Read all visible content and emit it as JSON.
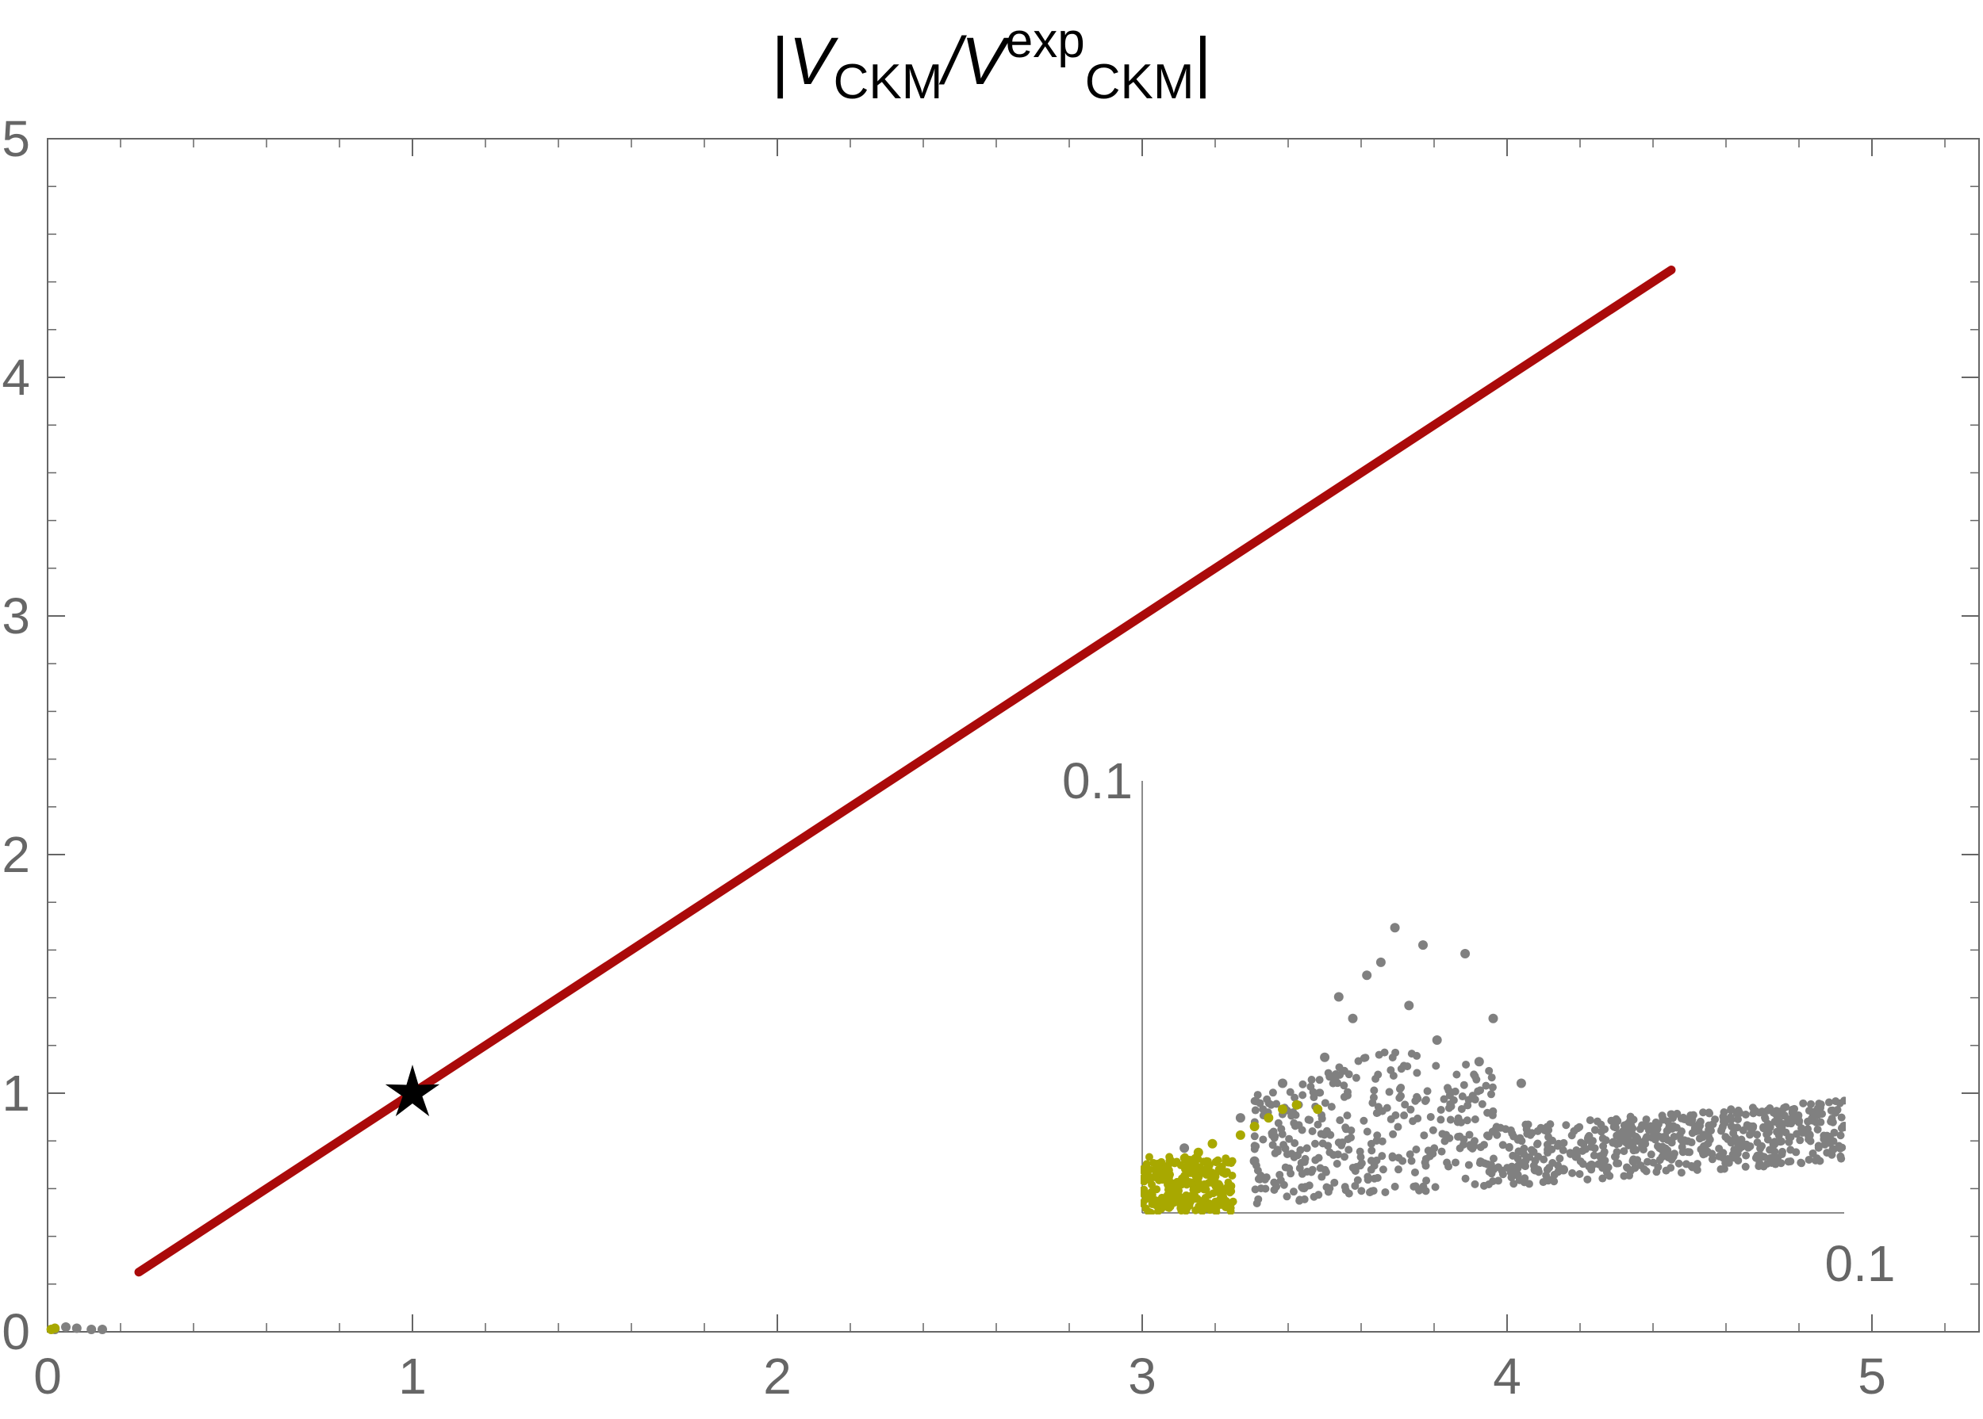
{
  "colors": {
    "axis": "#666666",
    "line": "#aa0a0a",
    "gray_points": "#808080",
    "yellow_points": "#a8a800",
    "star": "#000000"
  },
  "chart_data": [
    {
      "type": "scatter",
      "title_parts": {
        "bar_open": "|",
        "v1": "V",
        "sub1": "CKM",
        "slash": "/",
        "v2": "V",
        "sup": "exp",
        "sub2": "CKM",
        "bar_close": "|"
      },
      "xlabel": "",
      "ylabel": "",
      "xlim": [
        0,
        5.3
      ],
      "ylim": [
        0,
        5
      ],
      "x_ticks": [
        "0",
        "1",
        "2",
        "3",
        "4",
        "5"
      ],
      "y_ticks": [
        "0",
        "1",
        "2",
        "3",
        "4",
        "5"
      ],
      "grid": false,
      "series": [
        {
          "kind": "line",
          "color": "#aa0a0a",
          "x": [
            0.25,
            4.45
          ],
          "y": [
            0.25,
            4.45
          ]
        },
        {
          "kind": "marker",
          "marker": "star",
          "color": "#000000",
          "x": [
            1.0
          ],
          "y": [
            1.0
          ]
        },
        {
          "kind": "points",
          "color": "#808080",
          "x": [
            0.02,
            0.05,
            0.08,
            0.12,
            0.15
          ],
          "y": [
            0.01,
            0.02,
            0.015,
            0.01,
            0.01
          ]
        },
        {
          "kind": "points",
          "color": "#a8a800",
          "x": [
            0.01,
            0.02
          ],
          "y": [
            0.01,
            0.015
          ]
        }
      ]
    },
    {
      "type": "scatter",
      "inset": true,
      "x_tick_max": "0.1",
      "y_tick_max": "0.1",
      "xlim": [
        0,
        0.1
      ],
      "ylim": [
        0,
        0.1
      ],
      "series": [
        {
          "kind": "points",
          "color": "#808080",
          "x": [
            0.006,
            0.014,
            0.02,
            0.026,
            0.03,
            0.034,
            0.036,
            0.04,
            0.046,
            0.05,
            0.054,
            0.06,
            0.07,
            0.08,
            0.09,
            0.1,
            0.016,
            0.022,
            0.028,
            0.032,
            0.038,
            0.042,
            0.048,
            0.056,
            0.064,
            0.075,
            0.085,
            0.095
          ],
          "y": [
            0.015,
            0.022,
            0.03,
            0.036,
            0.045,
            0.058,
            0.066,
            0.062,
            0.06,
            0.045,
            0.03,
            0.01,
            0.012,
            0.014,
            0.016,
            0.02,
            0.012,
            0.025,
            0.05,
            0.055,
            0.048,
            0.04,
            0.035,
            0.01,
            0.011,
            0.013,
            0.015,
            0.018
          ]
        },
        {
          "kind": "points",
          "color": "#a8a800",
          "x": [
            0.0,
            0.002,
            0.004,
            0.006,
            0.008,
            0.01,
            0.012,
            0.014,
            0.016,
            0.018,
            0.02,
            0.022,
            0.025
          ],
          "y": [
            0.005,
            0.01,
            0.012,
            0.008,
            0.014,
            0.016,
            0.012,
            0.018,
            0.02,
            0.022,
            0.024,
            0.025,
            0.024
          ]
        }
      ]
    }
  ]
}
